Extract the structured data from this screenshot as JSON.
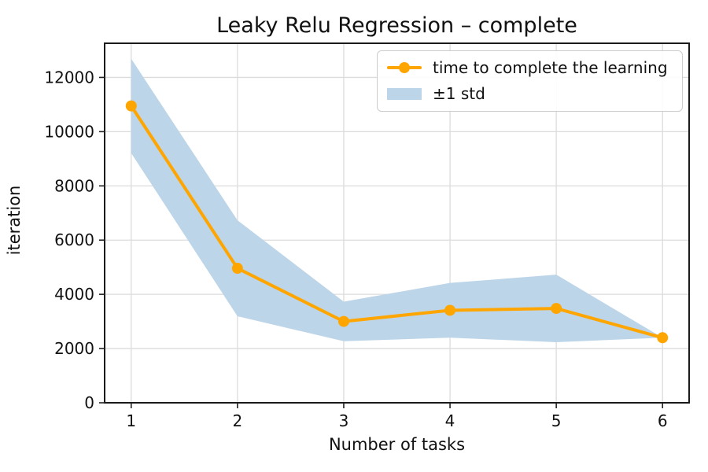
{
  "title": "Leaky Relu Regression – complete",
  "chart_data": {
    "type": "line",
    "title": "Leaky Relu Regression – complete",
    "xlabel": "Number of tasks",
    "ylabel": "iteration",
    "x": [
      1,
      2,
      3,
      4,
      5,
      6
    ],
    "series": [
      {
        "name": "time to complete the learning",
        "values": [
          10950,
          4960,
          3000,
          3410,
          3480,
          2400
        ],
        "color": "#FFA500",
        "marker": "circle",
        "line_width": 4,
        "marker_radius": 7
      }
    ],
    "band": {
      "label": "±1 std",
      "upper": [
        12690,
        6730,
        3730,
        4420,
        4725,
        2400
      ],
      "lower": [
        9210,
        3190,
        2270,
        2400,
        2235,
        2400
      ],
      "color": "#BDD5E8"
    },
    "xticks": [
      "1",
      "2",
      "3",
      "4",
      "5",
      "6"
    ],
    "xtick_values": [
      1,
      2,
      3,
      4,
      5,
      6
    ],
    "yticks": [
      "0",
      "2000",
      "4000",
      "6000",
      "8000",
      "10000",
      "12000"
    ],
    "ytick_values": [
      0,
      2000,
      4000,
      6000,
      8000,
      10000,
      12000
    ],
    "xlim": [
      0.75,
      6.25
    ],
    "ylim": [
      0,
      13260
    ],
    "grid": true,
    "grid_color": "#dcdcdc",
    "axis_color": "#1a1a1a",
    "tick_color": "#222222",
    "legend_position": "upper right",
    "legend_border_color": "#cccccc",
    "background_color": "#ffffff"
  }
}
